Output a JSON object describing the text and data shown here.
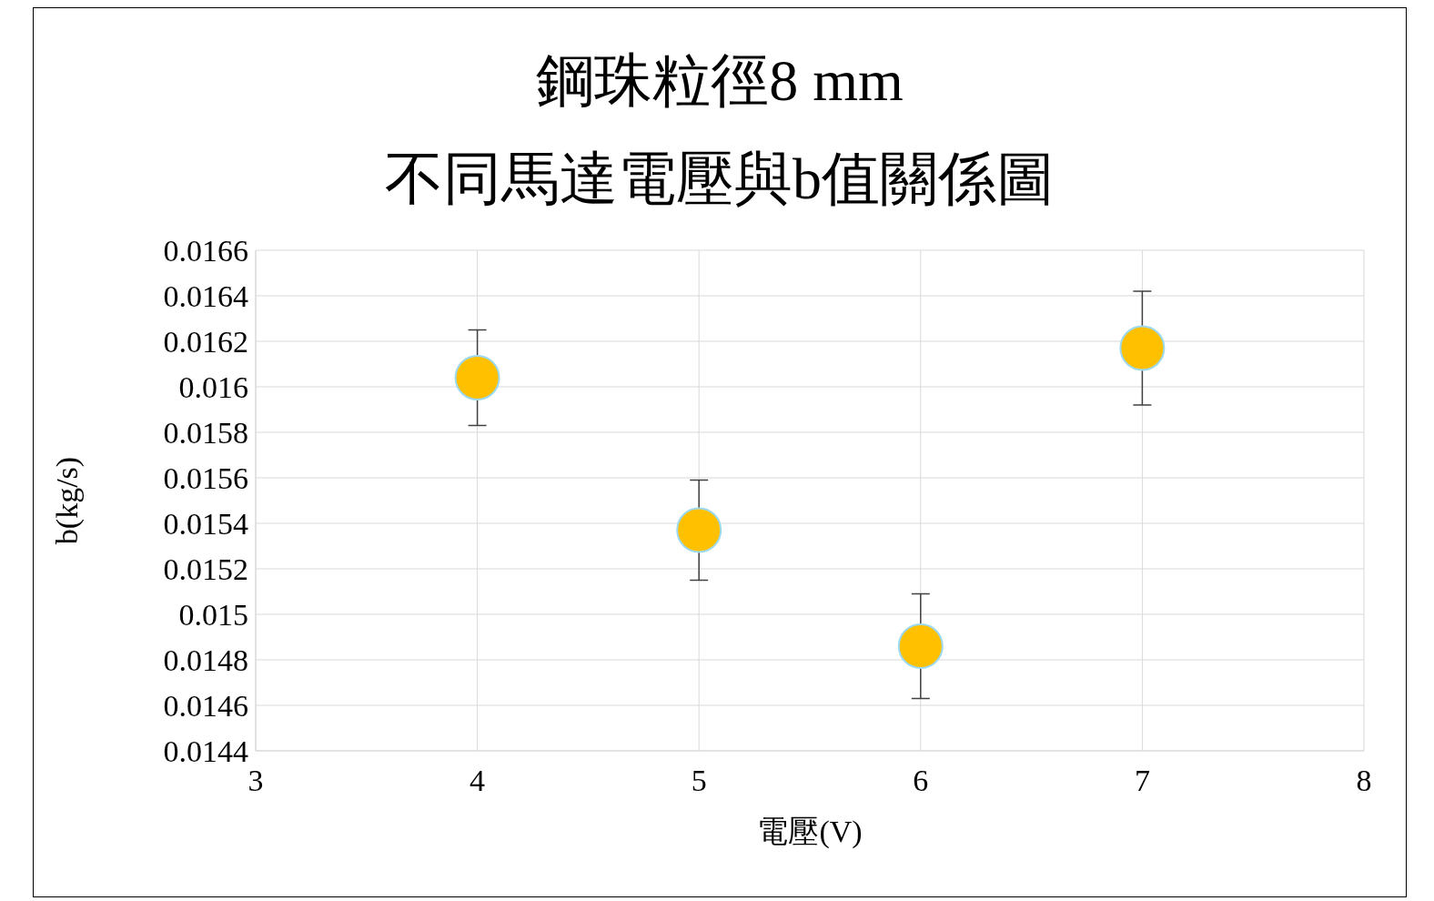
{
  "chart_data": {
    "type": "scatter",
    "title": "鋼珠粒徑8 mm",
    "subtitle": "不同馬達電壓與b值關係圖",
    "xlabel": "電壓(V)",
    "ylabel": "b(kg/s)",
    "x": [
      4,
      5,
      6,
      7
    ],
    "series": [
      {
        "color": "#ffc000",
        "values": [
          0.01604,
          0.01537,
          0.01486,
          0.01617
        ],
        "errors": [
          0.00021,
          0.00022,
          0.00023,
          0.00025
        ]
      }
    ],
    "xlim": [
      3,
      8
    ],
    "xticks": [
      3,
      4,
      5,
      6,
      7,
      8
    ],
    "ylim": [
      0.0144,
      0.0166
    ],
    "yticks": [
      0.0144,
      0.0146,
      0.0148,
      0.015,
      0.0152,
      0.0154,
      0.0156,
      0.0158,
      0.016,
      0.0162,
      0.0164,
      0.0166
    ],
    "grid": true,
    "legend": false,
    "marker": "circle"
  }
}
